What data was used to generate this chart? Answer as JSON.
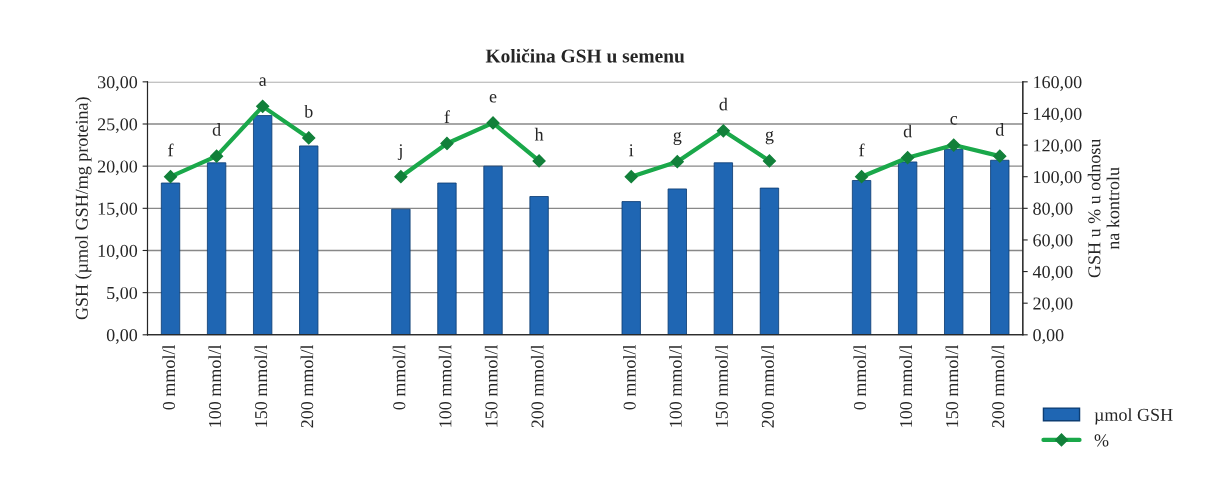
{
  "chart_data": {
    "type": "bar",
    "title": "Količina GSH u semenu",
    "categories": [
      "0 mmol/l",
      "100 mmol/l",
      "150 mmol/l",
      "200 mmol/l",
      null,
      "0 mmol/l",
      "100 mmol/l",
      "150 mmol/l",
      "200 mmol/l",
      null,
      "0 mmol/l",
      "100 mmol/l",
      "150 mmol/l",
      "200 mmol/l",
      null,
      "0 mmol/l",
      "100 mmol/l",
      "150 mmol/l",
      "200 mmol/l"
    ],
    "series": [
      {
        "name": "µmol GSH",
        "color": "#1f66b3",
        "values": [
          18.0,
          20.4,
          26.0,
          22.4,
          null,
          14.9,
          18.0,
          20.0,
          16.4,
          null,
          15.8,
          17.3,
          20.4,
          17.4,
          null,
          18.3,
          20.5,
          22.0,
          20.7
        ]
      },
      {
        "name": "%",
        "type": "line",
        "axis": "y2",
        "color": "#1aa84a",
        "marker": "diamond",
        "values": [
          100,
          113,
          144.5,
          124.5,
          null,
          100,
          121,
          134,
          110,
          null,
          100,
          109.5,
          129,
          110,
          null,
          100,
          112,
          120,
          113
        ],
        "value_labels": [
          "f",
          "d",
          "a",
          "b",
          null,
          "j",
          "f",
          "e",
          "h",
          null,
          "i",
          "g",
          "d",
          "g",
          null,
          "f",
          "d",
          "c",
          "d"
        ]
      }
    ],
    "ylabel": "GSH (µmol GSH/mg proteina)",
    "y2label": "GSH u % u odnosu\nna kontrolu",
    "ylim": [
      0,
      30
    ],
    "yticks": [
      {
        "value": 0,
        "label": "0,00"
      },
      {
        "value": 5,
        "label": "5,00"
      },
      {
        "value": 10,
        "label": "10,00"
      },
      {
        "value": 15,
        "label": "15,00"
      },
      {
        "value": 20,
        "label": "20,00"
      },
      {
        "value": 25,
        "label": "25,00"
      },
      {
        "value": 30,
        "label": "30,00"
      }
    ],
    "y2lim": [
      0,
      160
    ],
    "y2ticks": [
      {
        "value": 0,
        "label": "0,00"
      },
      {
        "value": 20,
        "label": "20,00"
      },
      {
        "value": 40,
        "label": "40,00"
      },
      {
        "value": 60,
        "label": "60,00"
      },
      {
        "value": 80,
        "label": "80,00"
      },
      {
        "value": 100,
        "label": "100,00"
      },
      {
        "value": 120,
        "label": "120,00"
      },
      {
        "value": 140,
        "label": "140,00"
      },
      {
        "value": 160,
        "label": "160,00"
      }
    ],
    "grid": "y",
    "legend": "bottom right"
  }
}
